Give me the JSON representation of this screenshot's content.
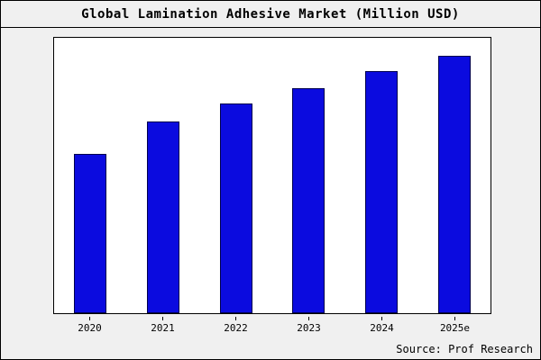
{
  "title": "Global Lamination Adhesive Market (Million USD)",
  "source": "Source: Prof Research",
  "colors": {
    "bar_fill": "#0b0bdf",
    "bar_border": "#00004d",
    "figure_bg": "#f0f0f0",
    "plot_bg": "#ffffff"
  },
  "chart_data": {
    "type": "bar",
    "title": "Global Lamination Adhesive Market (Million USD)",
    "categories": [
      "2020",
      "2021",
      "2022",
      "2023",
      "2024",
      "2025e"
    ],
    "values": [
      62,
      74.5,
      81.5,
      87.5,
      94,
      100
    ],
    "xlabel": "",
    "ylabel": "",
    "ylim": [
      0,
      107
    ],
    "grid": false,
    "legend": false,
    "value_note": "no y-axis tick labels visible in source image; values are relative bar heights as percent of tallest bar (2025e = 100)"
  }
}
